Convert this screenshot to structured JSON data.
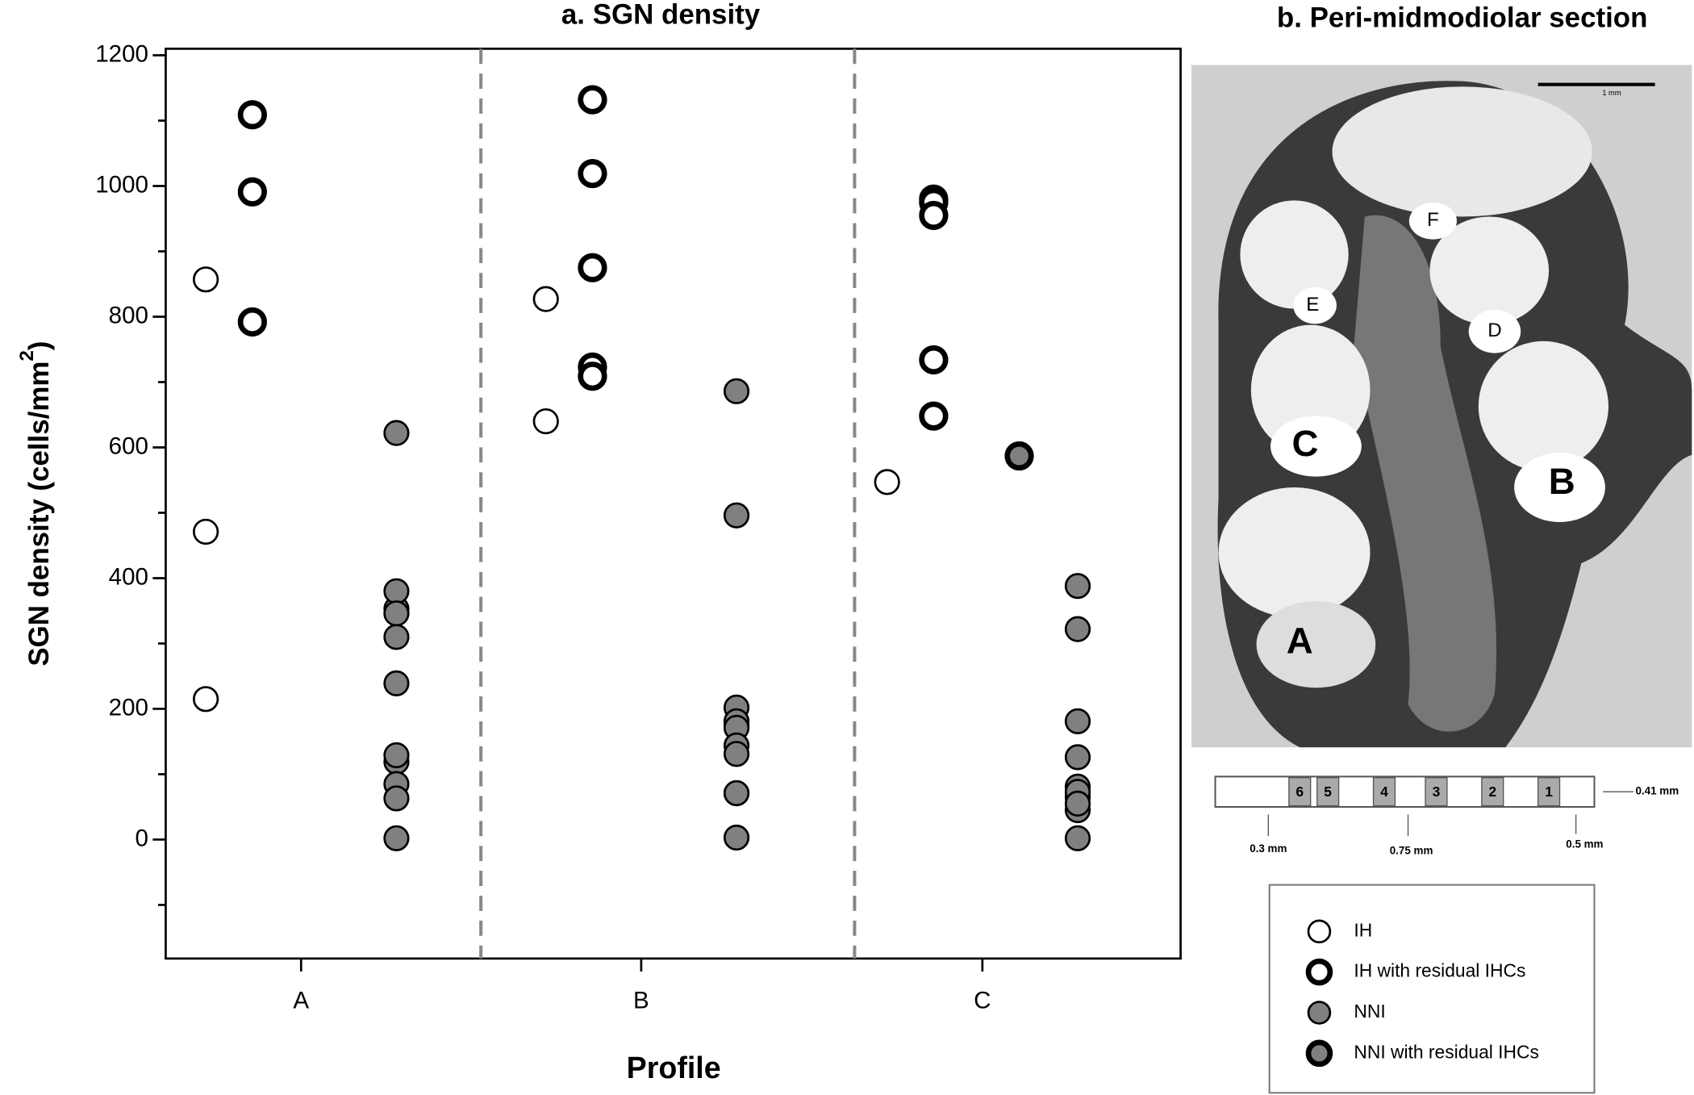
{
  "chart_data": {
    "type": "scatter",
    "title": "a. SGN density",
    "xlabel": "Profile",
    "ylabel": "SGN density (cells/mm",
    "ylabel_sup": "2",
    "ylabel_end": ")",
    "categories": [
      "A",
      "B",
      "C"
    ],
    "ylim": [
      -182,
      1210
    ],
    "yticks": [
      0,
      200,
      400,
      600,
      800,
      1000,
      1200
    ],
    "yticks_minor": [
      -100,
      100,
      300,
      500,
      700,
      900,
      1100
    ],
    "series": [
      {
        "name": "IH",
        "color": "#ffffff",
        "edge_width": 2,
        "x": [
          "A",
          "A",
          "A",
          "B",
          "B",
          "C"
        ],
        "values": [
          857,
          471,
          215,
          827,
          640,
          547
        ]
      },
      {
        "name": "IH with residual IHCs",
        "color": "#ffffff",
        "edge_width": 5,
        "x": [
          "A",
          "A",
          "A",
          "B",
          "B",
          "B",
          "B",
          "B",
          "C",
          "C",
          "C",
          "C",
          "C"
        ],
        "values": [
          1109,
          991,
          792,
          1132,
          1019,
          875,
          723,
          709,
          980,
          975,
          955,
          734,
          648
        ]
      },
      {
        "name": "NNI",
        "color": "#808080",
        "edge_width": 2,
        "x": [
          "A",
          "A",
          "A",
          "A",
          "A",
          "A",
          "A",
          "A",
          "A",
          "A",
          "A",
          "B",
          "B",
          "B",
          "B",
          "B",
          "B",
          "B",
          "B",
          "B",
          "B",
          "B",
          "C",
          "C",
          "C",
          "C",
          "C",
          "C",
          "C",
          "C",
          "C",
          "C"
        ],
        "values": [
          622,
          353,
          380,
          346,
          310,
          239,
          119,
          129,
          85,
          63,
          2,
          686,
          496,
          202,
          176,
          181,
          171,
          144,
          131,
          71,
          71,
          3,
          388,
          322,
          181,
          126,
          65,
          81,
          73,
          45,
          55,
          2
        ]
      },
      {
        "name": "NNI with residual IHCs",
        "color": "#808080",
        "edge_width": 5,
        "x": [
          "C"
        ],
        "values": [
          587
        ]
      }
    ]
  },
  "panel_b": {
    "title": "b. Peri-midmodiolar section",
    "image_labels": [
      "A",
      "B",
      "C",
      "D",
      "E",
      "F"
    ],
    "scale_label": "1 mm",
    "diagram": {
      "segments": [
        "6",
        "5",
        "4",
        "3",
        "2",
        "1"
      ],
      "width_label": "0.41 mm",
      "dimension_labels": [
        "0.3 mm",
        "0.75 mm",
        "0.5 mm"
      ]
    }
  }
}
